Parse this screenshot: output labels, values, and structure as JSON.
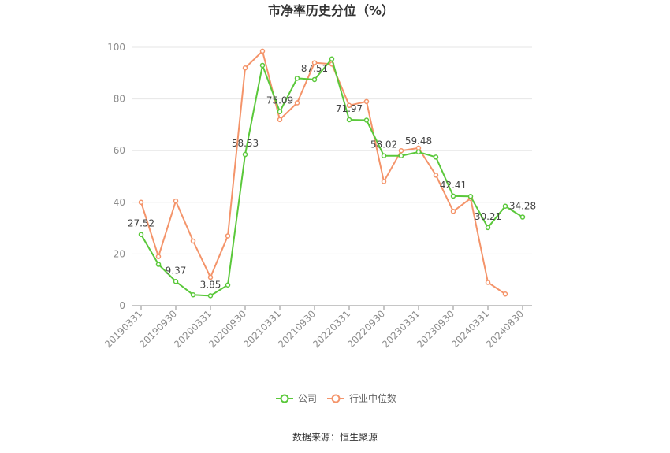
{
  "chart_data": {
    "type": "line",
    "title": "市净率历史分位（%）",
    "xlabel": "",
    "ylabel": "",
    "ylim": [
      0,
      100
    ],
    "yticks": [
      0,
      20,
      40,
      60,
      80,
      100
    ],
    "categories": [
      "20190331",
      "20190630",
      "20190930",
      "20191231",
      "20200331",
      "20200630",
      "20200930",
      "20201231",
      "20210331",
      "20210630",
      "20210930",
      "20211231",
      "20220331",
      "20220630",
      "20220930",
      "20221231",
      "20230331",
      "20230630",
      "20230930",
      "20231231",
      "20240331",
      "20240630",
      "20240830"
    ],
    "xtick_labels": [
      "20190331",
      "20190930",
      "20200331",
      "20200930",
      "20210331",
      "20210930",
      "20220331",
      "20220930",
      "20230331",
      "20230930",
      "20240331",
      "20240830"
    ],
    "series": [
      {
        "name": "公司",
        "color": "#5ac83a",
        "values": [
          27.52,
          16,
          9.37,
          4.2,
          3.85,
          8,
          58.53,
          93,
          75.09,
          88,
          87.51,
          95.5,
          71.97,
          71.8,
          58.02,
          58,
          59.48,
          57.5,
          42.41,
          42.3,
          30.21,
          38.5,
          34.28
        ],
        "labels": {
          "0": "27.52",
          "2": "9.37",
          "4": "3.85",
          "6": "58.53",
          "8": "75.09",
          "10": "87.51",
          "12": "71.97",
          "14": "58.02",
          "16": "59.48",
          "18": "42.41",
          "20": "30.21",
          "22": "34.28"
        }
      },
      {
        "name": "行业中位数",
        "color": "#f4946a",
        "values": [
          40,
          19,
          40.5,
          25,
          11,
          27,
          92,
          98.5,
          72,
          78.5,
          94,
          93.5,
          77.5,
          79,
          48,
          60,
          61,
          50.5,
          36.5,
          41.5,
          9,
          4.5,
          null
        ]
      }
    ],
    "legend": {
      "position": "bottom"
    },
    "grid": true
  },
  "footer": {
    "source": "数据来源：恒生聚源"
  }
}
